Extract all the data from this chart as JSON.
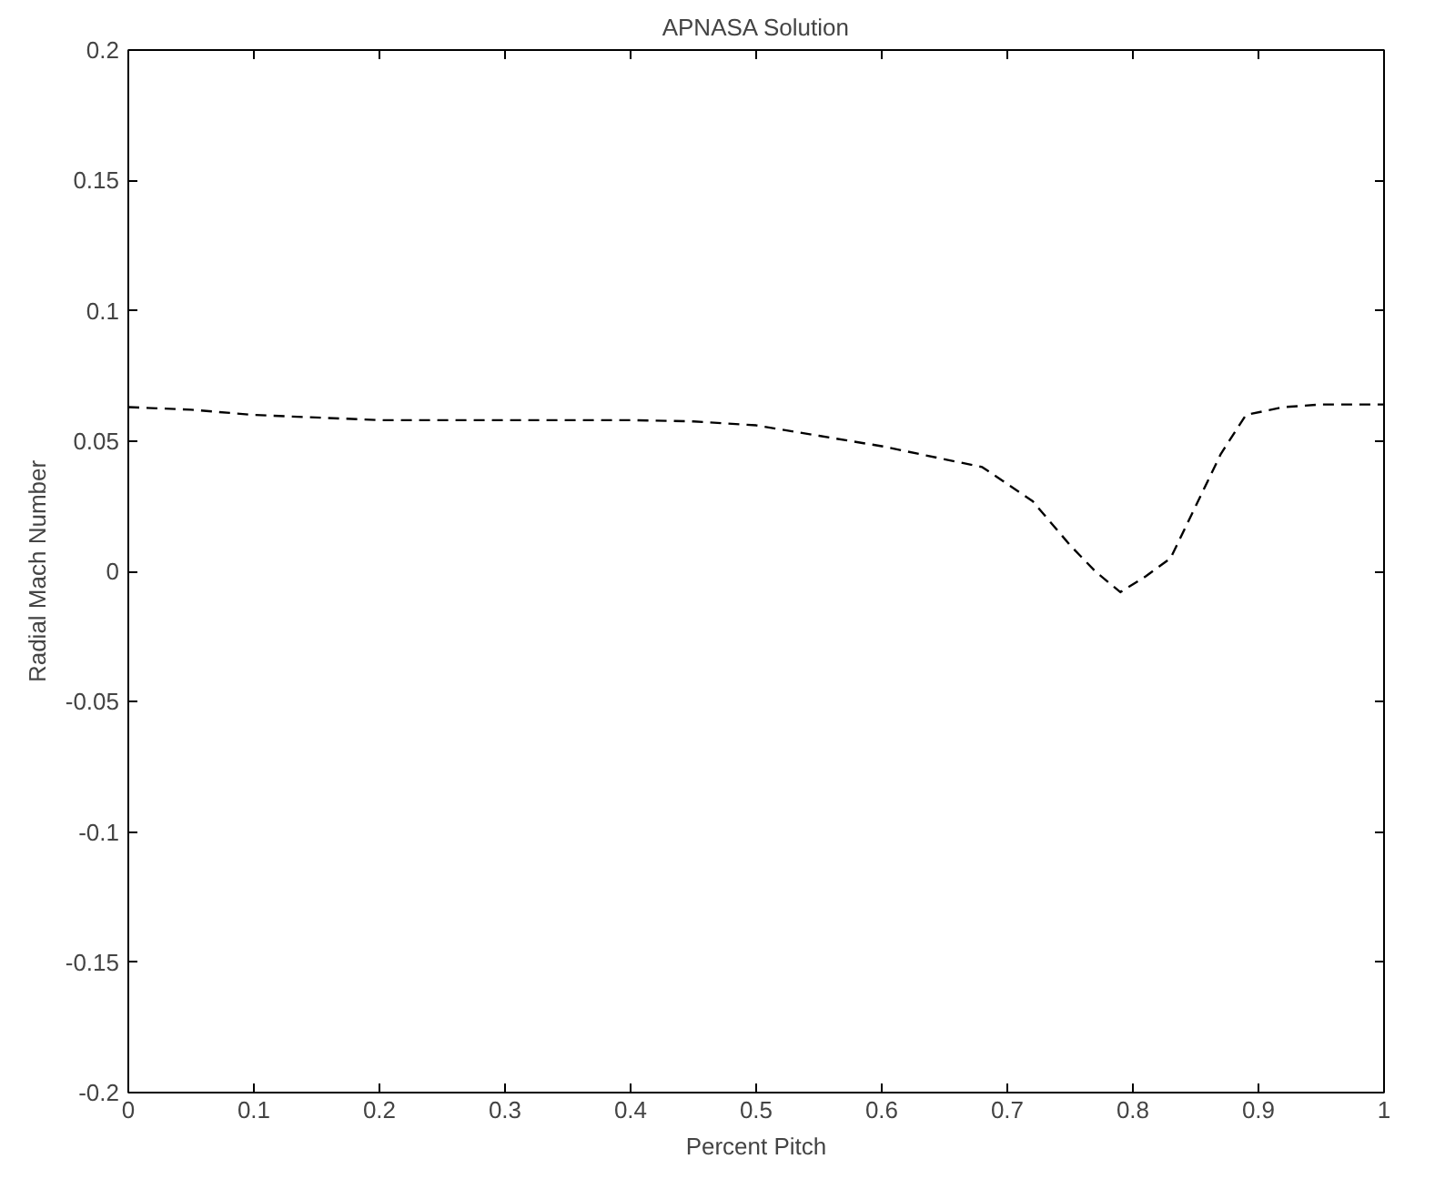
{
  "chart_data": {
    "type": "line",
    "title": "APNASA Solution",
    "xlabel": "Percent Pitch",
    "ylabel": "Radial Mach Number",
    "x": [
      0,
      0.05,
      0.1,
      0.2,
      0.3,
      0.4,
      0.45,
      0.5,
      0.55,
      0.6,
      0.65,
      0.68,
      0.72,
      0.75,
      0.77,
      0.79,
      0.81,
      0.83,
      0.85,
      0.87,
      0.89,
      0.92,
      0.95,
      1.0
    ],
    "series": [
      {
        "color": "#000000",
        "values": [
          0.063,
          0.062,
          0.06,
          0.058,
          0.058,
          0.058,
          0.0575,
          0.056,
          0.052,
          0.048,
          0.043,
          0.04,
          0.027,
          0.01,
          0.0,
          -0.008,
          -0.002,
          0.005,
          0.025,
          0.045,
          0.06,
          0.063,
          0.064,
          0.064
        ]
      }
    ],
    "xlim": [
      0,
      1
    ],
    "ylim": [
      -0.2,
      0.2
    ],
    "xticks": [
      0,
      0.1,
      0.2,
      0.3,
      0.4,
      0.5,
      0.6,
      0.7,
      0.8,
      0.9,
      1
    ],
    "yticks": [
      -0.2,
      -0.15,
      -0.1,
      -0.05,
      0,
      0.05,
      0.1,
      0.15,
      0.2
    ],
    "line_style": "dashed",
    "grid": false
  }
}
